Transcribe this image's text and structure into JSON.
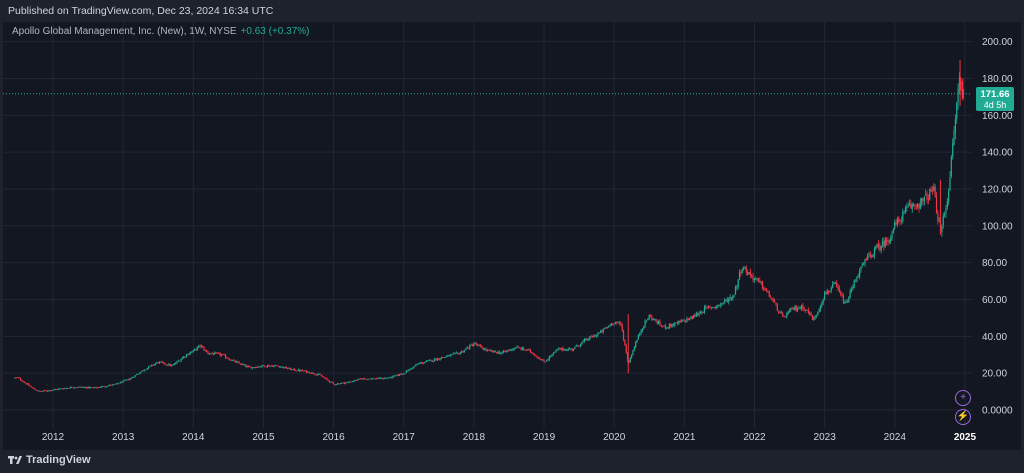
{
  "header": {
    "published": "Published on TradingView.com, Dec 23, 2024 16:34 UTC"
  },
  "legend": {
    "symbol": "Apollo Global Management, Inc. (New), 1W, NYSE",
    "change": "+0.63 (+0.37%)"
  },
  "price_badge": {
    "price": "171.66",
    "countdown": "4d 5h"
  },
  "footer": {
    "brand": "TradingView"
  },
  "colors": {
    "up": "#22ab94",
    "down": "#f23645",
    "price_line": "#22ab94",
    "event_icons": "#9c6ade"
  },
  "icons": {
    "event_top": "plus-circle-icon",
    "event_bottom": "lightning-icon",
    "brand": "tradingview-logo-icon"
  },
  "chart_data": {
    "type": "candlestick",
    "y_ticks": [
      "200.00",
      "180.00",
      "160.00",
      "140.00",
      "120.00",
      "100.00",
      "80.00",
      "60.00",
      "40.00",
      "20.00",
      "0.0000"
    ],
    "y_tick_values": [
      200,
      180,
      160,
      140,
      120,
      100,
      80,
      60,
      40,
      20,
      0
    ],
    "x_ticks": [
      "2012",
      "2013",
      "2014",
      "2015",
      "2016",
      "2017",
      "2018",
      "2019",
      "2020",
      "2021",
      "2022",
      "2023",
      "2024",
      "2025"
    ],
    "ylim": [
      -10,
      207
    ],
    "xlim": [
      2011.45,
      2025.0
    ],
    "last_price": 171.66,
    "series": [
      {
        "values": [
          [
            2011.5,
            17.5
          ],
          [
            2011.7,
            12
          ],
          [
            2011.8,
            10
          ],
          [
            2012.0,
            11
          ],
          [
            2012.3,
            12.5
          ],
          [
            2012.6,
            12
          ],
          [
            2012.9,
            14
          ],
          [
            2013.1,
            17
          ],
          [
            2013.3,
            22
          ],
          [
            2013.5,
            26
          ],
          [
            2013.7,
            24
          ],
          [
            2013.9,
            30
          ],
          [
            2014.0,
            32
          ],
          [
            2014.1,
            35
          ],
          [
            2014.2,
            31
          ],
          [
            2014.4,
            30
          ],
          [
            2014.6,
            26
          ],
          [
            2014.8,
            23
          ],
          [
            2015.0,
            24
          ],
          [
            2015.2,
            24
          ],
          [
            2015.4,
            22
          ],
          [
            2015.6,
            21
          ],
          [
            2015.8,
            19
          ],
          [
            2016.0,
            14
          ],
          [
            2016.2,
            15
          ],
          [
            2016.4,
            17
          ],
          [
            2016.6,
            17
          ],
          [
            2016.8,
            17.5
          ],
          [
            2017.0,
            20
          ],
          [
            2017.2,
            25
          ],
          [
            2017.4,
            27
          ],
          [
            2017.6,
            29
          ],
          [
            2017.8,
            31
          ],
          [
            2018.0,
            36
          ],
          [
            2018.2,
            32
          ],
          [
            2018.4,
            31
          ],
          [
            2018.6,
            34
          ],
          [
            2018.8,
            32
          ],
          [
            2019.0,
            26
          ],
          [
            2019.2,
            33
          ],
          [
            2019.4,
            33
          ],
          [
            2019.6,
            38
          ],
          [
            2019.8,
            42
          ],
          [
            2020.0,
            48
          ],
          [
            2020.1,
            46
          ],
          [
            2020.2,
            25
          ],
          [
            2020.3,
            36
          ],
          [
            2020.4,
            45
          ],
          [
            2020.5,
            51
          ],
          [
            2020.7,
            45
          ],
          [
            2020.9,
            47
          ],
          [
            2021.1,
            50
          ],
          [
            2021.3,
            55
          ],
          [
            2021.5,
            57
          ],
          [
            2021.7,
            62
          ],
          [
            2021.82,
            78
          ],
          [
            2021.95,
            73
          ],
          [
            2022.1,
            68
          ],
          [
            2022.25,
            60
          ],
          [
            2022.4,
            50
          ],
          [
            2022.55,
            55
          ],
          [
            2022.7,
            56
          ],
          [
            2022.85,
            49
          ],
          [
            2023.0,
            63
          ],
          [
            2023.15,
            68
          ],
          [
            2023.3,
            57
          ],
          [
            2023.45,
            72
          ],
          [
            2023.6,
            82
          ],
          [
            2023.75,
            88
          ],
          [
            2023.9,
            92
          ],
          [
            2024.0,
            100
          ],
          [
            2024.2,
            110
          ],
          [
            2024.4,
            113
          ],
          [
            2024.55,
            120
          ],
          [
            2024.65,
            96
          ],
          [
            2024.75,
            115
          ],
          [
            2024.82,
            140
          ],
          [
            2024.88,
            165
          ],
          [
            2024.92,
            180
          ],
          [
            2024.96,
            172
          ],
          [
            2024.98,
            171.66
          ]
        ]
      }
    ]
  }
}
